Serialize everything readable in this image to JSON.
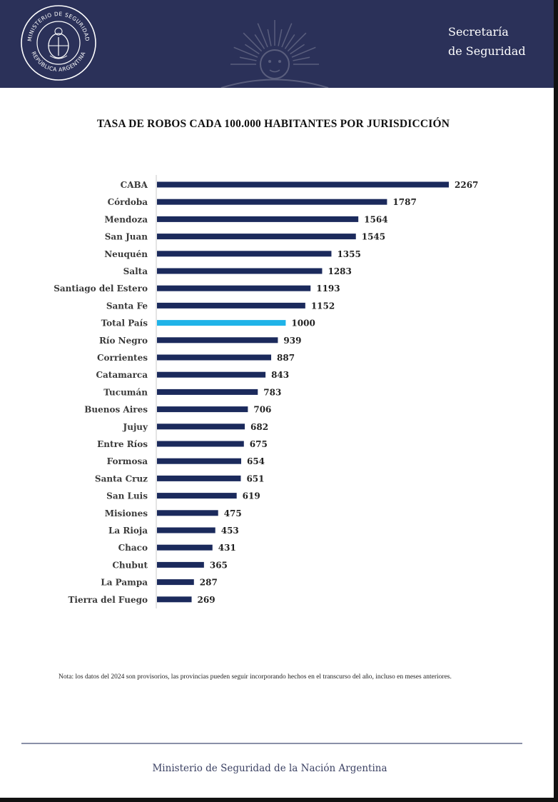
{
  "header": {
    "seal_top_text": "MINISTERIO DE SEGURIDAD",
    "seal_bottom_text": "REPÚBLICA ARGENTINA",
    "brand_line1": "Secretaría",
    "brand_line2": "de Seguridad",
    "background_color": "#2b3159"
  },
  "chart_data": {
    "type": "bar",
    "orientation": "horizontal",
    "title": "TASA DE ROBOS CADA 100.000 HABITANTES POR JURISDICCIÓN",
    "categories": [
      "CABA",
      "Córdoba",
      "Mendoza",
      "San Juan",
      "Neuquén",
      "Salta",
      "Santiago del Estero",
      "Santa Fe",
      "Total País",
      "Río Negro",
      "Corrientes",
      "Catamarca",
      "Tucumán",
      "Buenos Aires",
      "Jujuy",
      "Entre Ríos",
      "Formosa",
      "Santa Cruz",
      "San Luis",
      "Misiones",
      "La Rioja",
      "Chaco",
      "Chubut",
      "La Pampa",
      "Tierra del Fuego"
    ],
    "values": [
      2267,
      1787,
      1564,
      1545,
      1355,
      1283,
      1193,
      1152,
      1000,
      939,
      887,
      843,
      783,
      706,
      682,
      675,
      654,
      651,
      619,
      475,
      453,
      431,
      365,
      287,
      269
    ],
    "highlight_category": "Total País",
    "bar_color": "#1b2a5c",
    "highlight_color": "#1fb3e8",
    "xlim": [
      0,
      2267
    ]
  },
  "note": "Nota: los datos del 2024 son provisorios, las provincias pueden seguir incorporando hechos en el transcurso del año, incluso en meses anteriores.",
  "footer": "Ministerio de Seguridad de la Nación Argentina"
}
